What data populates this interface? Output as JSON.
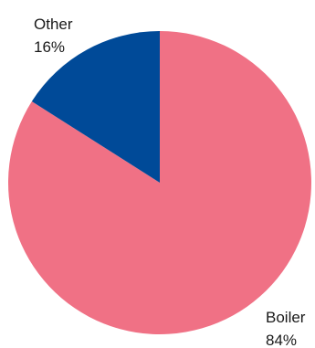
{
  "chart_data": {
    "type": "pie",
    "title": "",
    "slices": [
      {
        "label": "Boiler",
        "value": 84,
        "value_label": "84%",
        "color": "#f07185"
      },
      {
        "label": "Other",
        "value": 16,
        "value_label": "16%",
        "color": "#004a98"
      }
    ],
    "start_at": "top",
    "direction": "clockwise",
    "legend": "none",
    "labels": "outside"
  }
}
